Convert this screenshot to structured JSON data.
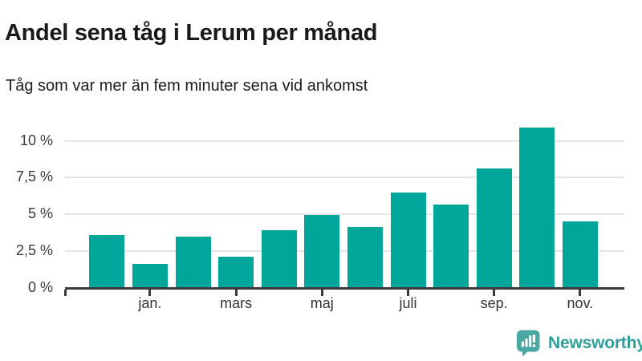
{
  "header": {
    "title": "Andel sena tåg i Lerum per månad",
    "subtitle": "Tåg som var mer än fem minuter sena vid ankomst"
  },
  "chart_data": {
    "type": "bar",
    "title": "Andel sena tåg i Lerum per månad",
    "subtitle": "Tåg som var mer än fem minuter sena vid ankomst",
    "values": [
      3.6,
      1.65,
      3.5,
      2.15,
      3.9,
      4.95,
      4.15,
      6.5,
      5.65,
      8.1,
      10.9,
      4.55
    ],
    "unit": "%",
    "xticks": [
      {
        "index": 1,
        "label": "jan."
      },
      {
        "index": 3,
        "label": "mars"
      },
      {
        "index": 5,
        "label": "maj"
      },
      {
        "index": 7,
        "label": "juli"
      },
      {
        "index": 9,
        "label": "sep."
      },
      {
        "index": 11,
        "label": "nov."
      }
    ],
    "yticks": [
      {
        "value": 0,
        "label": "0 %"
      },
      {
        "value": 2.5,
        "label": "2,5 %"
      },
      {
        "value": 5,
        "label": "5 %"
      },
      {
        "value": 7.5,
        "label": "7,5 %"
      },
      {
        "value": 10,
        "label": "10 %"
      }
    ],
    "ylim": [
      0,
      12.5
    ],
    "grid": true,
    "legend": "none",
    "bar_color": "#00A69A"
  },
  "footer": {
    "brand": "Newsworthy",
    "logo_icon": "bar-chart-speech-bubble-icon"
  },
  "colors": {
    "bar": "#00A69A",
    "brand_text": "#2F9E98",
    "brand_icon": "#4AA7A2",
    "axis": "#3B3B3B",
    "grid": "#E4E4E4",
    "title_text": "#191919"
  }
}
